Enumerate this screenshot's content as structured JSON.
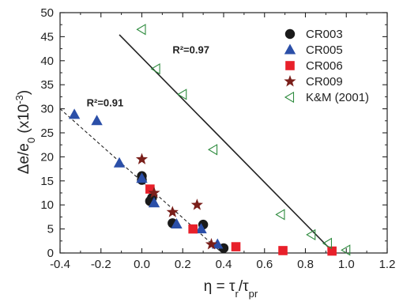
{
  "chart_data": {
    "type": "scatter",
    "xlabel": {
      "main": "η = τ",
      "sub1": "r",
      "mid": "/τ",
      "sub2": "pr"
    },
    "ylabel": {
      "main": "Δe/e",
      "sub": "0",
      "tail": " (x10",
      "sup": "-3",
      "close": ")"
    },
    "xlim": [
      -0.4,
      1.2
    ],
    "ylim": [
      0,
      50
    ],
    "x_ticks": [
      -0.4,
      -0.2,
      0.0,
      0.2,
      0.4,
      0.6,
      0.8,
      1.0,
      1.2
    ],
    "x_tick_labels": [
      "-0.4",
      "-0.2",
      "0.0",
      "0.2",
      "0.4",
      "0.6",
      "0.8",
      "1.0",
      "1.2"
    ],
    "y_ticks": [
      0,
      5,
      10,
      15,
      20,
      25,
      30,
      35,
      40,
      45,
      50
    ],
    "y_tick_labels": [
      "0",
      "5",
      "10",
      "15",
      "20",
      "25",
      "30",
      "35",
      "40",
      "45",
      "50"
    ],
    "grid": false,
    "legend_position": "top-right",
    "series": [
      {
        "name": "CR003",
        "marker": "circle",
        "color": "#1a1a1a",
        "points": [
          [
            0.0,
            16.0
          ],
          [
            0.04,
            10.8
          ],
          [
            0.15,
            6.2
          ],
          [
            0.3,
            5.9
          ],
          [
            0.4,
            1.0
          ],
          [
            0.0,
            15.2
          ],
          [
            0.05,
            11.5
          ]
        ]
      },
      {
        "name": "CR005",
        "marker": "triangle",
        "color": "#2b4fa8",
        "points": [
          [
            -0.33,
            28.8
          ],
          [
            -0.22,
            27.5
          ],
          [
            -0.11,
            18.7
          ],
          [
            0.0,
            15.5
          ],
          [
            0.06,
            10.4
          ],
          [
            0.17,
            6.0
          ],
          [
            0.29,
            5.0
          ],
          [
            0.37,
            1.8
          ]
        ]
      },
      {
        "name": "CR006",
        "marker": "square",
        "color": "#e8202a",
        "points": [
          [
            0.04,
            13.3
          ],
          [
            0.25,
            5.0
          ],
          [
            0.46,
            1.3
          ],
          [
            0.69,
            0.5
          ],
          [
            0.93,
            0.4
          ]
        ]
      },
      {
        "name": "CR009",
        "marker": "star",
        "color": "#7a1f1a",
        "points": [
          [
            0.0,
            19.5
          ],
          [
            0.06,
            12.5
          ],
          [
            0.15,
            8.5
          ],
          [
            0.27,
            10.0
          ],
          [
            0.34,
            1.8
          ]
        ]
      },
      {
        "name": "K&M (2001)",
        "marker": "open-triangle-left",
        "color": "#2e8b3e",
        "points": [
          [
            0.0,
            46.5
          ],
          [
            0.07,
            38.3
          ],
          [
            0.2,
            33.0
          ],
          [
            0.35,
            21.5
          ],
          [
            0.68,
            8.0
          ],
          [
            0.83,
            3.8
          ],
          [
            0.91,
            2.0
          ],
          [
            1.0,
            0.6
          ]
        ]
      }
    ],
    "fit_lines": [
      {
        "style": "solid",
        "x": [
          -0.11,
          0.94
        ],
        "y": [
          45.4,
          0.0
        ],
        "annotation": "R²=0.97",
        "annotation_at": [
          0.15,
          41.5
        ]
      },
      {
        "style": "dashed",
        "x": [
          -0.4,
          0.38
        ],
        "y": [
          30.0,
          0.5
        ],
        "annotation": "R²=0.91",
        "annotation_at": [
          -0.27,
          30.5
        ]
      }
    ]
  }
}
